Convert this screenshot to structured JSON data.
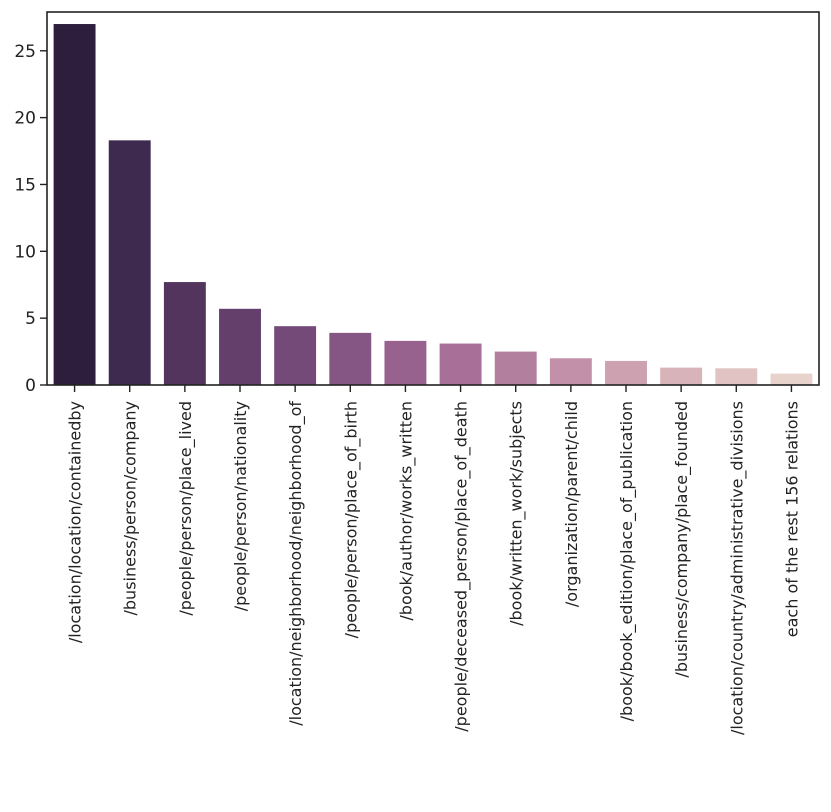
{
  "chart_data": {
    "type": "bar",
    "title": "",
    "xlabel": "",
    "ylabel": "",
    "ylim": [
      0,
      27.9
    ],
    "yticks": [
      0,
      5,
      10,
      15,
      20,
      25
    ],
    "grid": false,
    "categories": [
      "/location/location/containedby",
      "/business/person/company",
      "/people/person/place_lived",
      "/people/person/nationality",
      "/location/neighborhood/neighborhood_of",
      "/people/person/place_of_birth",
      "/book/author/works_written",
      "/people/deceased_person/place_of_death",
      "/book/written_work/subjects",
      "/organization/parent/child",
      "/book/book_edition/place_of_publication",
      "/business/company/place_founded",
      "/location/country/administrative_divisions",
      "each of the rest 156 relations"
    ],
    "values": [
      27.0,
      18.3,
      7.7,
      5.7,
      4.4,
      3.9,
      3.3,
      3.1,
      2.5,
      2.0,
      1.8,
      1.3,
      1.25,
      0.85
    ],
    "colors": [
      "#2d1e3e",
      "#3f2a4f",
      "#52345c",
      "#653f6b",
      "#744a78",
      "#855683",
      "#98628e",
      "#a86f98",
      "#b27f9f",
      "#c291a9",
      "#cda1b0",
      "#d8b3b9",
      "#e0c3c2",
      "#e8d2cc"
    ]
  }
}
